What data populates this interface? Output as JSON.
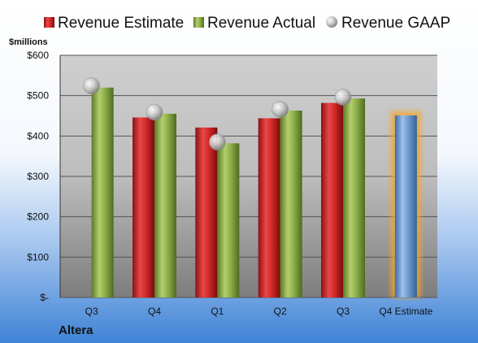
{
  "company": "Altera",
  "colors": {
    "estimate": "#d42a2a",
    "actual": "#8fb04a",
    "gaap": "#b8b8b8",
    "forecast": "#6f9bd2",
    "forecast_glow": "#f5a623"
  },
  "chart_data": {
    "type": "bar",
    "ylabel": "$millions",
    "ylim": [
      0,
      600
    ],
    "yticks": [
      {
        "value": 0,
        "label": "$-"
      },
      {
        "value": 100,
        "label": "$100"
      },
      {
        "value": 200,
        "label": "$200"
      },
      {
        "value": 300,
        "label": "$300"
      },
      {
        "value": 400,
        "label": "$400"
      },
      {
        "value": 500,
        "label": "$500"
      },
      {
        "value": 600,
        "label": "$600"
      }
    ],
    "categories": [
      "Q3",
      "Q4",
      "Q1",
      "Q2",
      "Q3",
      "Q4 Estimate"
    ],
    "legend_position": "top",
    "grid": true,
    "series": [
      {
        "name": "Revenue Estimate",
        "kind": "bar",
        "values": [
          null,
          446,
          421,
          444,
          482,
          null
        ]
      },
      {
        "name": "Revenue Actual",
        "kind": "bar",
        "values": [
          520,
          455,
          382,
          463,
          493,
          null
        ]
      },
      {
        "name": "Revenue GAAP",
        "kind": "marker",
        "values": [
          524,
          459,
          385,
          466,
          496,
          null
        ]
      }
    ],
    "forecast": {
      "category_index": 5,
      "value": 451
    }
  }
}
